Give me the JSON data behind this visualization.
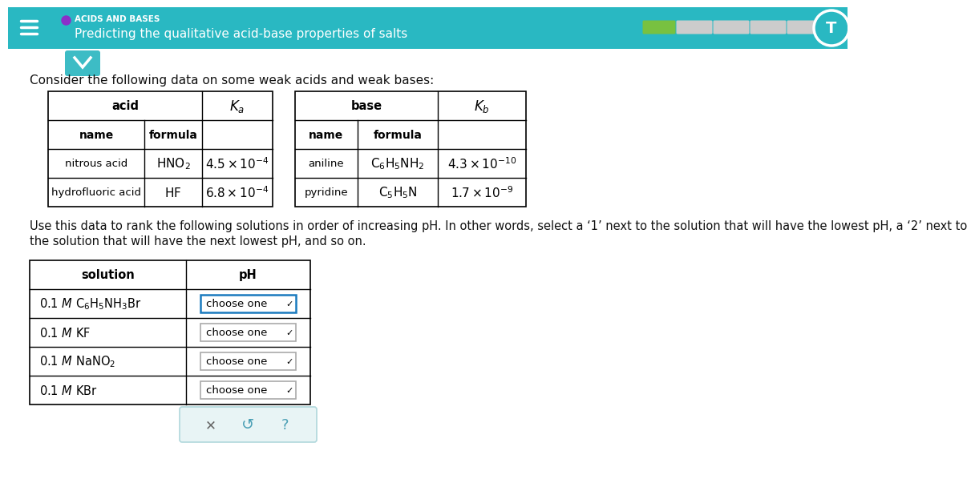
{
  "header_bg": "#29b8c2",
  "header_text_color": "#ffffff",
  "title_main": "ACIDS AND BASES",
  "title_sub": "Predicting the qualitative acid-base properties of salts",
  "body_bg": "#ffffff",
  "body_text_color": "#000000",
  "intro_text": "Consider the following data on some weak acids and weak bases:",
  "instruction_line1": "Use this data to rank the following solutions in order of increasing pH. In other words, select a ‘1’ next to the solution that will have the lowest pH, a ‘2’ next to",
  "instruction_line2": "the solution that will have the next lowest pH, and so on.",
  "sol_headers": [
    "solution",
    "pH"
  ],
  "sol_rows": [
    "0.1  $M$  $\\mathrm{C_6H_5NH_3Br}$",
    "0.1  $M$  KF",
    "0.1  $M$  $\\mathrm{NaNO_2}$",
    "0.1  $M$  KBr"
  ],
  "progress_bar_colors": [
    "#78c140",
    "#cccccc",
    "#cccccc",
    "#cccccc",
    "#cccccc"
  ],
  "orange_dot_color": "#8b2fc9",
  "bottom_panel_bg": "#e8f4f5",
  "bottom_panel_border": "#b0d8dc",
  "dropdown_blue_border": "#1a7abf",
  "dropdown_gray_border": "#aaaaaa"
}
